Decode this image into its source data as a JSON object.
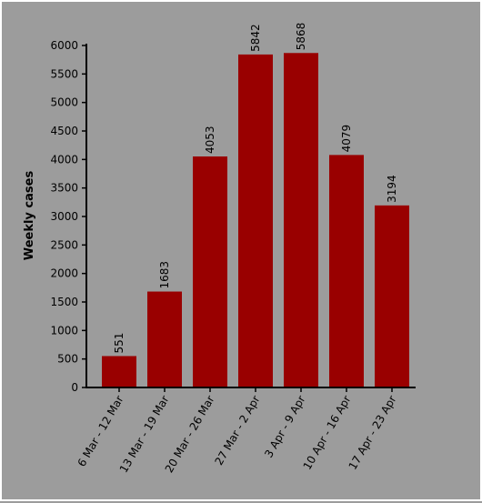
{
  "chart_data": {
    "type": "bar",
    "title": "",
    "xlabel": "",
    "ylabel": "Weekly cases",
    "categories": [
      "6 Mar - 12 Mar",
      "13 Mar - 19 Mar",
      "20 Mar - 26 Mar",
      "27 Mar - 2 Apr",
      "3 Apr - 9 Apr",
      "10 Apr - 16 Apr",
      "17 Apr - 23 Apr"
    ],
    "values": [
      551,
      1683,
      4053,
      5842,
      5868,
      4079,
      3194
    ],
    "data_labels": [
      "551",
      "1683",
      "4053",
      "5842",
      "5868",
      "4079",
      "3194"
    ],
    "ylim": [
      0,
      6000
    ],
    "yticks": [
      0,
      500,
      1000,
      1500,
      2000,
      2500,
      3000,
      3500,
      4000,
      4500,
      5000,
      5500,
      6000
    ],
    "grid": false,
    "legend": "none",
    "colors": {
      "bar": "#990000",
      "background": "#9c9c9c",
      "axis": "#000000"
    }
  }
}
